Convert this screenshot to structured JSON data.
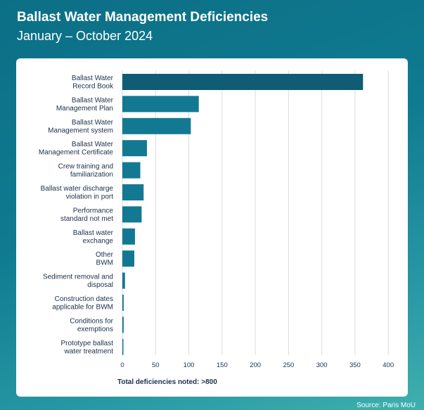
{
  "header": {
    "title": "Ballast Water Management Deficiencies",
    "subtitle": "January – October 2024"
  },
  "footer": {
    "note": "Total deficiencies noted: >800",
    "source": "Source: Paris MoU"
  },
  "colors": {
    "highlight_bar": "#0f5c74",
    "bar": "#137993",
    "grid": "#d7dde3",
    "text": "#1b2f4a"
  },
  "chart_data": {
    "type": "bar",
    "orientation": "horizontal",
    "categories": [
      [
        "Ballast Water",
        "Record Book"
      ],
      [
        "Ballast Water",
        "Management Plan"
      ],
      [
        "Ballast Water",
        "Management system"
      ],
      [
        "Ballast Water",
        "Management Certificate"
      ],
      [
        "Crew training and",
        "familiarization"
      ],
      [
        "Ballast water discharge",
        "violation in port"
      ],
      [
        "Performance",
        "standard not met"
      ],
      [
        "Ballast water",
        "exchange"
      ],
      [
        "Other",
        "BWM"
      ],
      [
        "Sediment removal and",
        "disposal"
      ],
      [
        "Construction dates",
        "applicable for BWM"
      ],
      [
        "Conditions for",
        "exemptions"
      ],
      [
        "Prototype ballast",
        "water treatment"
      ]
    ],
    "values": [
      362,
      115,
      103,
      37,
      27,
      32,
      29,
      19,
      18,
      4,
      2,
      2,
      1
    ],
    "xlim": [
      0,
      400
    ],
    "xticks": [
      0,
      50,
      100,
      150,
      200,
      250,
      300,
      350,
      400
    ],
    "grid": true,
    "highlight_index": 0
  }
}
